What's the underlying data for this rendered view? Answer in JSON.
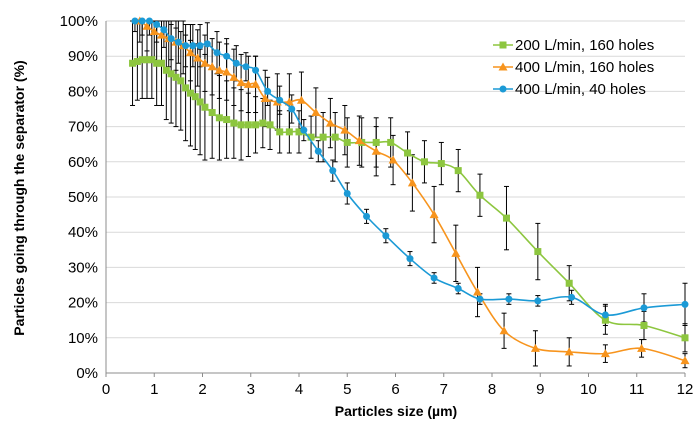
{
  "chart_data": {
    "type": "line",
    "xlabel": "Particles size (µm)",
    "ylabel": "Particles  going through the separator (%)",
    "xlim": [
      0,
      12
    ],
    "ylim": [
      0,
      100
    ],
    "x_ticks": [
      "0",
      "1",
      "2",
      "3",
      "4",
      "5",
      "6",
      "7",
      "8",
      "9",
      "10",
      "11",
      "12"
    ],
    "y_ticks": [
      "0%",
      "10%",
      "20%",
      "30%",
      "40%",
      "50%",
      "60%",
      "70%",
      "80%",
      "90%",
      "100%"
    ],
    "grid": "horizontal",
    "legend_position": "top-right",
    "series": [
      {
        "name": "200 L/min, 160 holes",
        "color": "#8DC63F",
        "marker": "square",
        "points": [
          [
            0.55,
            88
          ],
          [
            0.65,
            88.5
          ],
          [
            0.75,
            89
          ],
          [
            0.85,
            89
          ],
          [
            0.95,
            89
          ],
          [
            1.05,
            88
          ],
          [
            1.15,
            88
          ],
          [
            1.25,
            86
          ],
          [
            1.35,
            85
          ],
          [
            1.45,
            84
          ],
          [
            1.55,
            83
          ],
          [
            1.65,
            81
          ],
          [
            1.75,
            79.5
          ],
          [
            1.85,
            78.5
          ],
          [
            1.95,
            77
          ],
          [
            2.05,
            75.5
          ],
          [
            2.2,
            74
          ],
          [
            2.35,
            72.5
          ],
          [
            2.5,
            72
          ],
          [
            2.65,
            71
          ],
          [
            2.8,
            70.5
          ],
          [
            2.95,
            70.5
          ],
          [
            3.1,
            70.5
          ],
          [
            3.25,
            71
          ],
          [
            3.4,
            70.5
          ],
          [
            3.6,
            68.5
          ],
          [
            3.8,
            68.5
          ],
          [
            4.0,
            68.5
          ],
          [
            4.25,
            67
          ],
          [
            4.5,
            67
          ],
          [
            4.75,
            67
          ],
          [
            5.0,
            65.5
          ],
          [
            5.3,
            65.5
          ],
          [
            5.6,
            65.5
          ],
          [
            5.9,
            65.5
          ],
          [
            6.25,
            62.5
          ],
          [
            6.6,
            60
          ],
          [
            6.95,
            59.5
          ],
          [
            7.3,
            57.5
          ],
          [
            7.75,
            50.5
          ],
          [
            8.3,
            44
          ],
          [
            8.95,
            34.5
          ],
          [
            9.6,
            25.5
          ],
          [
            10.35,
            15
          ],
          [
            11.15,
            13.5
          ],
          [
            12.0,
            10
          ]
        ],
        "errors": [
          [
            0.55,
            12,
            12
          ],
          [
            0.65,
            11,
            11
          ],
          [
            0.75,
            11,
            11
          ],
          [
            0.85,
            11,
            11
          ],
          [
            0.95,
            11,
            11
          ],
          [
            1.05,
            12,
            12
          ],
          [
            1.15,
            12,
            12
          ],
          [
            1.25,
            14,
            14
          ],
          [
            1.35,
            14,
            14
          ],
          [
            1.45,
            14,
            14
          ],
          [
            1.55,
            14,
            14
          ],
          [
            1.65,
            15,
            15
          ],
          [
            1.75,
            15,
            15
          ],
          [
            1.85,
            15,
            15
          ],
          [
            1.95,
            15,
            15
          ],
          [
            2.05,
            15,
            15
          ],
          [
            2.2,
            13,
            13
          ],
          [
            2.35,
            12,
            12
          ],
          [
            2.5,
            11,
            11
          ],
          [
            2.65,
            10,
            10
          ],
          [
            2.8,
            10,
            10
          ],
          [
            2.95,
            9,
            9
          ],
          [
            3.1,
            8,
            8
          ],
          [
            3.25,
            7,
            7
          ],
          [
            3.4,
            7,
            7
          ],
          [
            3.6,
            6,
            6
          ],
          [
            3.8,
            6,
            6
          ],
          [
            4.0,
            6,
            6
          ],
          [
            4.25,
            6,
            6
          ],
          [
            4.5,
            7,
            7
          ],
          [
            4.75,
            7,
            7
          ],
          [
            5.0,
            7,
            7
          ],
          [
            5.3,
            7,
            7
          ],
          [
            5.6,
            7,
            7
          ],
          [
            5.9,
            7,
            7
          ],
          [
            6.25,
            6,
            6
          ],
          [
            6.6,
            6,
            6
          ],
          [
            6.95,
            6,
            6
          ],
          [
            7.3,
            6,
            6
          ],
          [
            7.75,
            6,
            6
          ],
          [
            8.3,
            9,
            9
          ],
          [
            8.95,
            8,
            8
          ],
          [
            9.6,
            5,
            5
          ],
          [
            10.35,
            4,
            4
          ],
          [
            11.15,
            4,
            4
          ],
          [
            12.0,
            4,
            4
          ]
        ]
      },
      {
        "name": "400 L/min, 160 holes",
        "color": "#F7941D",
        "marker": "triangle",
        "points": [
          [
            0.7,
            100
          ],
          [
            0.85,
            98.5
          ],
          [
            1.0,
            97
          ],
          [
            1.15,
            96
          ],
          [
            1.3,
            95
          ],
          [
            1.45,
            94
          ],
          [
            1.6,
            93
          ],
          [
            1.75,
            91
          ],
          [
            1.9,
            89.5
          ],
          [
            2.05,
            88
          ],
          [
            2.2,
            87
          ],
          [
            2.35,
            86
          ],
          [
            2.5,
            85.5
          ],
          [
            2.65,
            84
          ],
          [
            2.8,
            82.5
          ],
          [
            2.95,
            82
          ],
          [
            3.1,
            82
          ],
          [
            3.3,
            78
          ],
          [
            3.55,
            77
          ],
          [
            3.8,
            77
          ],
          [
            4.05,
            77.5
          ],
          [
            4.35,
            74
          ],
          [
            4.65,
            71
          ],
          [
            4.95,
            69
          ],
          [
            5.25,
            66
          ],
          [
            5.6,
            63
          ],
          [
            5.95,
            60.5
          ],
          [
            6.35,
            54
          ],
          [
            6.8,
            45
          ],
          [
            7.25,
            34
          ],
          [
            7.7,
            23
          ],
          [
            8.25,
            12
          ],
          [
            8.9,
            7
          ],
          [
            9.6,
            6
          ],
          [
            10.35,
            5.5
          ],
          [
            11.1,
            7
          ],
          [
            12.0,
            3.5
          ]
        ],
        "errors": [
          [
            0.7,
            6,
            6
          ],
          [
            0.85,
            7,
            7
          ],
          [
            1.0,
            8,
            8
          ],
          [
            1.15,
            8,
            8
          ],
          [
            1.3,
            8,
            8
          ],
          [
            1.45,
            8,
            8
          ],
          [
            1.6,
            8,
            8
          ],
          [
            1.75,
            8,
            8
          ],
          [
            1.9,
            8,
            8
          ],
          [
            2.05,
            8,
            8
          ],
          [
            2.2,
            8,
            8
          ],
          [
            2.35,
            8,
            8
          ],
          [
            2.5,
            8,
            8
          ],
          [
            2.65,
            8,
            8
          ],
          [
            2.8,
            8,
            8
          ],
          [
            2.95,
            8,
            8
          ],
          [
            3.1,
            8,
            8
          ],
          [
            3.3,
            8,
            8
          ],
          [
            3.55,
            8,
            8
          ],
          [
            3.8,
            8,
            8
          ],
          [
            4.05,
            8,
            8
          ],
          [
            4.35,
            7,
            7
          ],
          [
            4.65,
            7,
            7
          ],
          [
            4.95,
            7,
            7
          ],
          [
            5.25,
            7,
            7
          ],
          [
            5.6,
            7,
            7
          ],
          [
            5.95,
            7,
            7
          ],
          [
            6.35,
            8,
            8
          ],
          [
            6.8,
            8,
            8
          ],
          [
            7.25,
            8,
            8
          ],
          [
            7.7,
            7,
            7
          ],
          [
            8.25,
            5,
            5
          ],
          [
            8.9,
            5,
            5
          ],
          [
            9.6,
            4,
            4
          ],
          [
            10.35,
            2.5,
            2.5
          ],
          [
            11.1,
            2.5,
            2.5
          ],
          [
            12.0,
            2,
            2
          ]
        ]
      },
      {
        "name": "400 L/min, 40 holes",
        "color": "#1B9AD6",
        "marker": "circle",
        "points": [
          [
            0.6,
            100
          ],
          [
            0.75,
            100
          ],
          [
            0.9,
            100
          ],
          [
            1.05,
            99
          ],
          [
            1.2,
            97.5
          ],
          [
            1.35,
            95
          ],
          [
            1.5,
            94
          ],
          [
            1.65,
            93
          ],
          [
            1.8,
            93
          ],
          [
            1.95,
            93
          ],
          [
            2.1,
            93.5
          ],
          [
            2.3,
            91
          ],
          [
            2.5,
            90
          ],
          [
            2.7,
            88
          ],
          [
            2.9,
            87
          ],
          [
            3.1,
            86
          ],
          [
            3.35,
            80
          ],
          [
            3.6,
            77.5
          ],
          [
            3.85,
            75
          ],
          [
            4.1,
            69
          ],
          [
            4.4,
            63
          ],
          [
            4.7,
            57.5
          ],
          [
            5.0,
            51
          ],
          [
            5.4,
            44.5
          ],
          [
            5.8,
            39
          ],
          [
            6.3,
            32.5
          ],
          [
            6.8,
            27
          ],
          [
            7.3,
            24
          ],
          [
            7.75,
            21
          ],
          [
            8.35,
            21
          ],
          [
            8.95,
            20.5
          ],
          [
            9.65,
            21.5
          ],
          [
            10.35,
            16.5
          ],
          [
            11.15,
            18.5
          ],
          [
            12.0,
            19.5
          ]
        ],
        "errors": [
          [
            0.6,
            3,
            3
          ],
          [
            0.75,
            4,
            4
          ],
          [
            0.9,
            4,
            4
          ],
          [
            1.05,
            5,
            5
          ],
          [
            1.2,
            5,
            5
          ],
          [
            1.35,
            6,
            6
          ],
          [
            1.5,
            6,
            6
          ],
          [
            1.65,
            6,
            6
          ],
          [
            1.8,
            6,
            6
          ],
          [
            1.95,
            6,
            6
          ],
          [
            2.1,
            6,
            6
          ],
          [
            2.3,
            6,
            6
          ],
          [
            2.5,
            5,
            5
          ],
          [
            2.7,
            5,
            5
          ],
          [
            2.9,
            4,
            4
          ],
          [
            3.1,
            4,
            4
          ],
          [
            3.35,
            4,
            4
          ],
          [
            3.6,
            4,
            4
          ],
          [
            3.85,
            4,
            4
          ],
          [
            4.1,
            3,
            3
          ],
          [
            4.4,
            3,
            3
          ],
          [
            4.7,
            3,
            3
          ],
          [
            5.0,
            3,
            3
          ],
          [
            5.4,
            2,
            2
          ],
          [
            5.8,
            2,
            2
          ],
          [
            6.3,
            2,
            2
          ],
          [
            6.8,
            1.5,
            1.5
          ],
          [
            7.3,
            1.5,
            1.5
          ],
          [
            7.75,
            1.5,
            1.5
          ],
          [
            8.35,
            1.5,
            1.5
          ],
          [
            8.95,
            1.5,
            1.5
          ],
          [
            9.65,
            2,
            2
          ],
          [
            10.35,
            3,
            3
          ],
          [
            11.15,
            4,
            4
          ],
          [
            12.0,
            6,
            6
          ]
        ]
      }
    ]
  }
}
